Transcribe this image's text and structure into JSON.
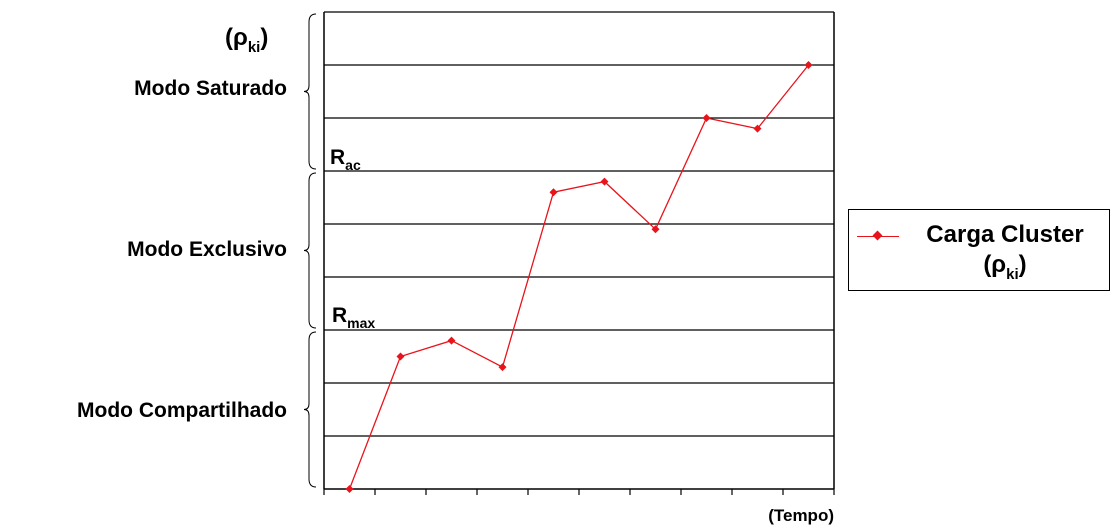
{
  "chart_data": {
    "type": "line",
    "x": [
      1,
      2,
      3,
      4,
      5,
      6,
      7,
      8,
      9,
      10
    ],
    "series": [
      {
        "name": "Carga Cluster (ρki)",
        "values": [
          0,
          2.5,
          2.8,
          2.3,
          5.6,
          5.8,
          4.9,
          7.0,
          6.8,
          8.0
        ],
        "color": "#e8141b",
        "marker": "diamond"
      }
    ],
    "xlim": [
      0.5,
      10.5
    ],
    "ylim": [
      0,
      9
    ],
    "ylabel": "(ρki)",
    "xlabel": "(Tempo)",
    "grid": "horizontal",
    "hlines": [
      1,
      2,
      3,
      4,
      5,
      6,
      7,
      8,
      9
    ],
    "thresholds": [
      {
        "label": "Rac",
        "value": 6
      },
      {
        "label": "Rmax",
        "value": 3
      }
    ],
    "modes": [
      {
        "label": "Modo Saturado",
        "from": 6,
        "to": 9
      },
      {
        "label": "Modo Exclusivo",
        "from": 3,
        "to": 6
      },
      {
        "label": "Modo Compartilhado",
        "from": 0,
        "to": 3
      }
    ],
    "legend_position": "right"
  },
  "text": {
    "ylabel_main": "(ρ",
    "ylabel_sub": "ki",
    "ylabel_close": ")",
    "xlabel": "(Tempo)",
    "mode_saturado": "Modo Saturado",
    "mode_exclusivo": "Modo Exclusivo",
    "mode_compartilhado": "Modo Compartilhado",
    "rac_main": "R",
    "rac_sub": "ac",
    "rmax_main": "R",
    "rmax_sub": "max",
    "legend_title": "Carga Cluster",
    "legend_paren_open": "(ρ",
    "legend_paren_sub": "ki",
    "legend_paren_close": ")"
  }
}
